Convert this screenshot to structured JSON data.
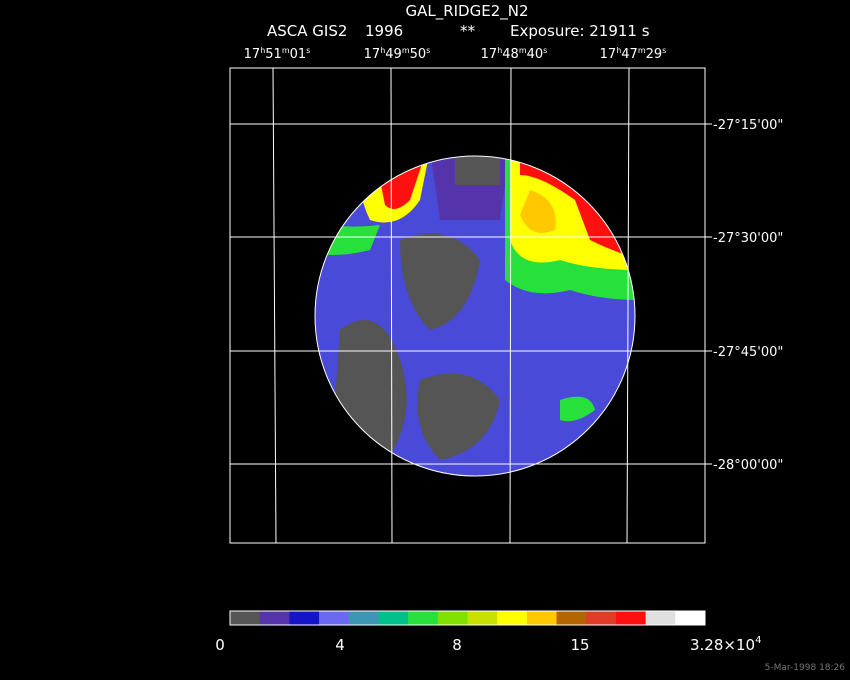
{
  "header": {
    "title": "GAL_RIDGE2_N2",
    "instrument": "ASCA GIS2",
    "year": "1996",
    "flag": "**",
    "exposure": "Exposure: 21911 s"
  },
  "ra_labels": [
    [
      "17",
      "h",
      "51",
      "m",
      "01",
      "s"
    ],
    [
      "17",
      "h",
      "49",
      "m",
      "50",
      "s"
    ],
    [
      "17",
      "h",
      "48",
      "m",
      "40",
      "s"
    ],
    [
      "17",
      "h",
      "47",
      "m",
      "29",
      "s"
    ]
  ],
  "dec_labels": [
    "-27°15'00\"",
    "-27°30'00\"",
    "-27°45'00\"",
    "-28°00'00\""
  ],
  "colorbar": {
    "colors": [
      "#555555",
      "#5533aa",
      "#1515c8",
      "#6a6af0",
      "#3c96b4",
      "#00c08c",
      "#28e03c",
      "#80e000",
      "#c8e000",
      "#ffff00",
      "#ffc800",
      "#b46400",
      "#e03c28",
      "#ff1010",
      "#e0e0e0",
      "#ffffff"
    ],
    "labels": [
      "0",
      "4",
      "8",
      "15"
    ],
    "max_label": [
      "3.28×10",
      "4"
    ]
  },
  "timestamp": "5-Mar-1998 18:26"
}
